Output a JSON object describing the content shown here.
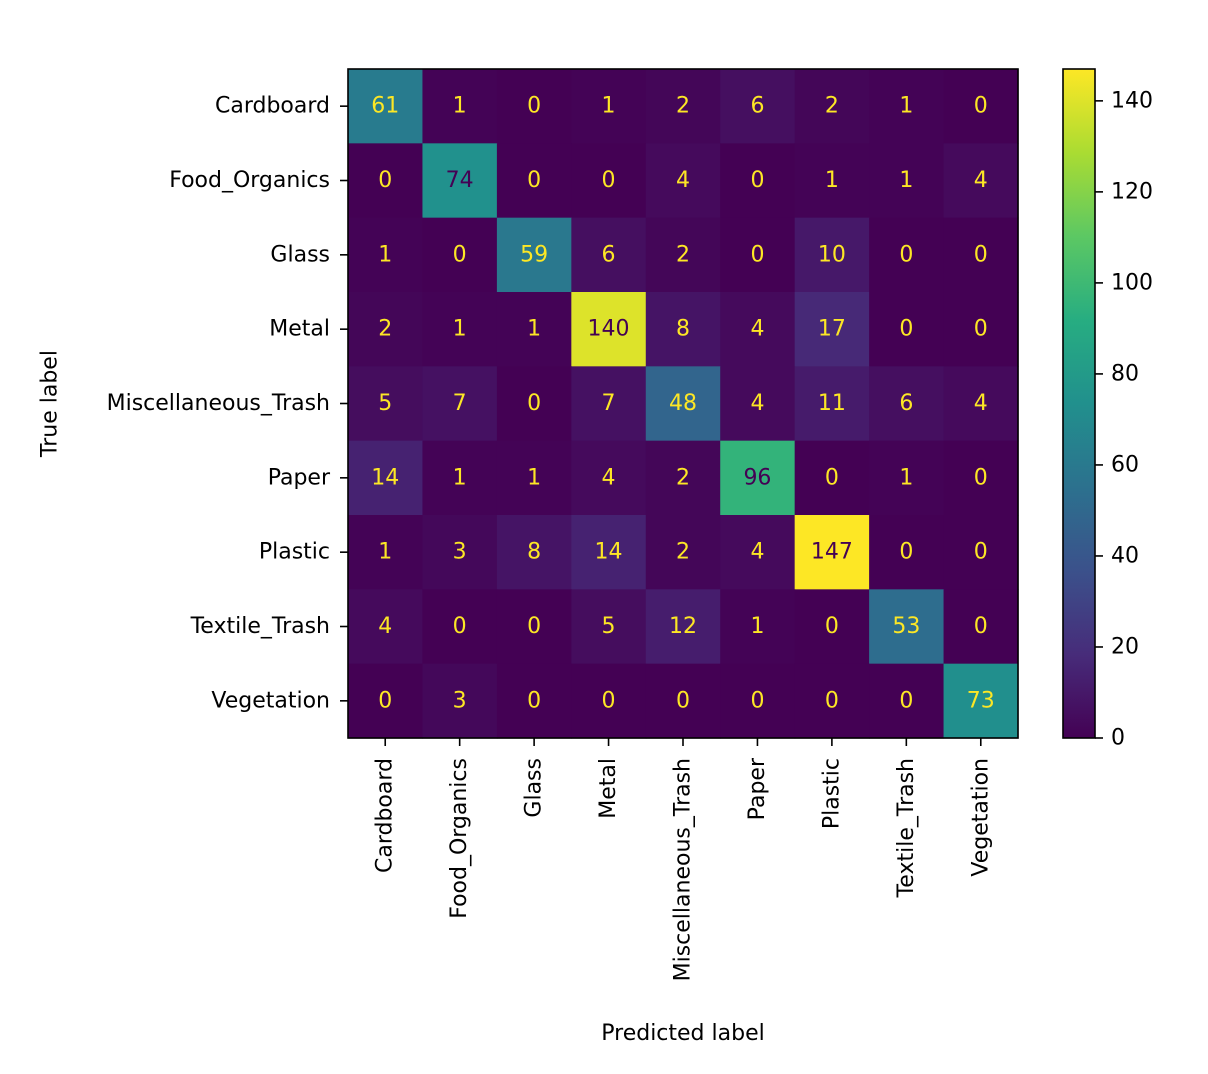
{
  "chart_data": {
    "type": "heatmap",
    "title": "",
    "xlabel": "Predicted label",
    "ylabel": "True label",
    "x_labels": [
      "Cardboard",
      "Food_Organics",
      "Glass",
      "Metal",
      "Miscellaneous_Trash",
      "Paper",
      "Plastic",
      "Textile_Trash",
      "Vegetation"
    ],
    "y_labels": [
      "Cardboard",
      "Food_Organics",
      "Glass",
      "Metal",
      "Miscellaneous_Trash",
      "Paper",
      "Plastic",
      "Textile_Trash",
      "Vegetation"
    ],
    "matrix": [
      [
        61,
        1,
        0,
        1,
        2,
        6,
        2,
        1,
        0
      ],
      [
        0,
        74,
        0,
        0,
        4,
        0,
        1,
        1,
        4
      ],
      [
        1,
        0,
        59,
        6,
        2,
        0,
        10,
        0,
        0
      ],
      [
        2,
        1,
        1,
        140,
        8,
        4,
        17,
        0,
        0
      ],
      [
        5,
        7,
        0,
        7,
        48,
        4,
        11,
        6,
        4
      ],
      [
        14,
        1,
        1,
        4,
        2,
        96,
        0,
        1,
        0
      ],
      [
        1,
        3,
        8,
        14,
        2,
        4,
        147,
        0,
        0
      ],
      [
        4,
        0,
        0,
        5,
        12,
        1,
        0,
        53,
        0
      ],
      [
        0,
        3,
        0,
        0,
        0,
        0,
        0,
        0,
        73
      ]
    ],
    "colormap": "viridis",
    "vmin": 0,
    "vmax": 147,
    "colorbar_ticks": [
      "0",
      "20",
      "40",
      "60",
      "80",
      "100",
      "120",
      "140"
    ],
    "colorbar_tick_values": [
      0,
      20,
      40,
      60,
      80,
      100,
      120,
      140
    ],
    "text_colors": {
      "low": "#fde725",
      "high": "#440154"
    },
    "grid": false
  }
}
